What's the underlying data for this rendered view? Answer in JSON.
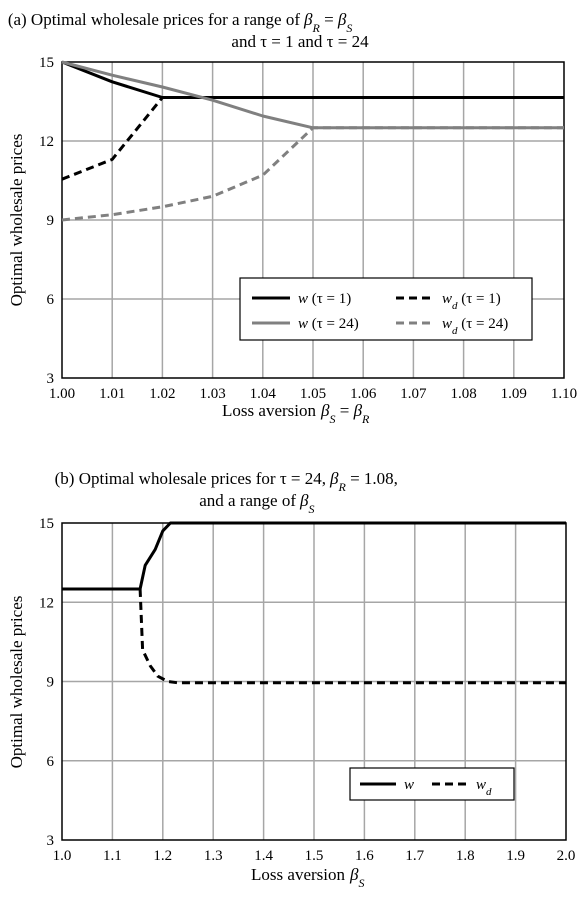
{
  "chart_data": [
    {
      "type": "line",
      "title": "(a) Optimal wholesale prices for a range of βR = βS",
      "title_line1": "(a) Optimal wholesale prices for a range of",
      "title_line2": "and τ = 1 and τ = 24",
      "xlabel": "Loss aversion βS = βR",
      "xlabel_text": "Loss aversion",
      "ylabel": "Optimal wholesale prices",
      "xlim": [
        1.0,
        1.1
      ],
      "ylim": [
        3,
        15
      ],
      "xticks": [
        "1.00",
        "1.01",
        "1.02",
        "1.03",
        "1.04",
        "1.05",
        "1.06",
        "1.07",
        "1.08",
        "1.09",
        "1.10"
      ],
      "yticks": [
        "3",
        "6",
        "9",
        "12",
        "15"
      ],
      "grid": true,
      "legend_position": "lower-right",
      "series": [
        {
          "name": "w (τ = 1)",
          "label_main": "w",
          "label_sub": "",
          "label_tail": " (τ = 1)",
          "color": "#000000",
          "dash": "solid",
          "x": [
            1.0,
            1.01,
            1.02,
            1.03,
            1.04,
            1.05,
            1.06,
            1.07,
            1.08,
            1.09,
            1.1
          ],
          "y": [
            15.0,
            14.25,
            13.65,
            13.65,
            13.65,
            13.65,
            13.65,
            13.65,
            13.65,
            13.65,
            13.65
          ]
        },
        {
          "name": "wd (τ = 1)",
          "label_main": "w",
          "label_sub": "d",
          "label_tail": " (τ = 1)",
          "color": "#000000",
          "dash": "dashed",
          "x": [
            1.0,
            1.01,
            1.02,
            1.03,
            1.04,
            1.05,
            1.06,
            1.07,
            1.08,
            1.09,
            1.1
          ],
          "y": [
            10.55,
            11.3,
            13.65,
            13.65,
            13.65,
            13.65,
            13.65,
            13.65,
            13.65,
            13.65,
            13.65
          ]
        },
        {
          "name": "w (τ = 24)",
          "label_main": "w",
          "label_sub": "",
          "label_tail": " (τ = 24)",
          "color": "#808080",
          "dash": "solid",
          "x": [
            1.0,
            1.01,
            1.02,
            1.03,
            1.04,
            1.05,
            1.06,
            1.07,
            1.08,
            1.09,
            1.1
          ],
          "y": [
            15.0,
            14.5,
            14.05,
            13.55,
            12.95,
            12.5,
            12.5,
            12.5,
            12.5,
            12.5,
            12.5
          ]
        },
        {
          "name": "wd (τ = 24)",
          "label_main": "w",
          "label_sub": "d",
          "label_tail": " (τ = 24)",
          "color": "#808080",
          "dash": "dashed",
          "x": [
            1.0,
            1.01,
            1.02,
            1.03,
            1.04,
            1.05,
            1.06,
            1.07,
            1.08,
            1.09,
            1.1
          ],
          "y": [
            9.0,
            9.2,
            9.5,
            9.9,
            10.7,
            12.5,
            12.5,
            12.5,
            12.5,
            12.5,
            12.5
          ]
        }
      ]
    },
    {
      "type": "line",
      "title": "(b) Optimal wholesale prices for τ = 24, βR = 1.08, and a range of βS",
      "title_line1": "(b) Optimal wholesale prices for τ = 24,",
      "title_line2": "and a range of",
      "xlabel": "Loss aversion βS",
      "xlabel_text": "Loss aversion",
      "ylabel": "Optimal wholesale prices",
      "xlim": [
        1.0,
        2.0
      ],
      "ylim": [
        3,
        15
      ],
      "xticks": [
        "1.0",
        "1.1",
        "1.2",
        "1.3",
        "1.4",
        "1.5",
        "1.6",
        "1.7",
        "1.8",
        "1.9",
        "2.0"
      ],
      "yticks": [
        "3",
        "6",
        "9",
        "12",
        "15"
      ],
      "grid": true,
      "legend_position": "lower-right",
      "series": [
        {
          "name": "w",
          "label_main": "w",
          "label_sub": "",
          "label_tail": "",
          "color": "#000000",
          "dash": "solid",
          "x": [
            1.0,
            1.155,
            1.165,
            1.185,
            1.2,
            1.215,
            1.3,
            1.4,
            1.5,
            1.6,
            1.7,
            1.8,
            1.9,
            2.0
          ],
          "y": [
            12.5,
            12.5,
            13.4,
            14.0,
            14.7,
            15.0,
            15.0,
            15.0,
            15.0,
            15.0,
            15.0,
            15.0,
            15.0,
            15.0
          ]
        },
        {
          "name": "wd",
          "label_main": "w",
          "label_sub": "d",
          "label_tail": "",
          "color": "#000000",
          "dash": "dashed",
          "x": [
            1.155,
            1.16,
            1.175,
            1.19,
            1.21,
            1.23,
            1.3,
            1.4,
            1.5,
            1.6,
            1.7,
            1.8,
            1.9,
            2.0
          ],
          "y": [
            12.5,
            10.2,
            9.6,
            9.2,
            9.0,
            8.95,
            8.95,
            8.95,
            8.95,
            8.95,
            8.95,
            8.95,
            8.95,
            8.95
          ]
        }
      ]
    }
  ]
}
